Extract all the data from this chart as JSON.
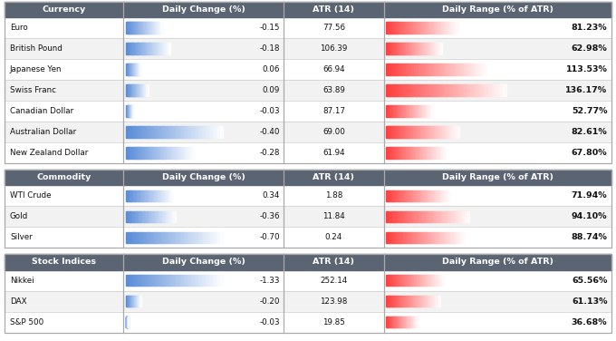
{
  "sections": [
    {
      "header": "Currency",
      "rows": [
        {
          "name": "Euro",
          "daily_change": -0.15,
          "atr": "77.56",
          "daily_range": 81.23
        },
        {
          "name": "British Pound",
          "daily_change": -0.18,
          "atr": "106.39",
          "daily_range": 62.98
        },
        {
          "name": "Japanese Yen",
          "daily_change": 0.06,
          "atr": "66.94",
          "daily_range": 113.53
        },
        {
          "name": "Swiss Franc",
          "daily_change": 0.09,
          "atr": "63.89",
          "daily_range": 136.17
        },
        {
          "name": "Canadian Dollar",
          "daily_change": -0.03,
          "atr": "87.17",
          "daily_range": 52.77
        },
        {
          "name": "Australian Dollar",
          "daily_change": -0.4,
          "atr": "69.00",
          "daily_range": 82.61
        },
        {
          "name": "New Zealand Dollar",
          "daily_change": -0.28,
          "atr": "61.94",
          "daily_range": 67.8
        }
      ]
    },
    {
      "header": "Commodity",
      "rows": [
        {
          "name": "WTI Crude",
          "daily_change": 0.34,
          "atr": "1.88",
          "daily_range": 71.94
        },
        {
          "name": "Gold",
          "daily_change": -0.36,
          "atr": "11.84",
          "daily_range": 94.1
        },
        {
          "name": "Silver",
          "daily_change": -0.7,
          "atr": "0.24",
          "daily_range": 88.74
        }
      ]
    },
    {
      "header": "Stock Indices",
      "rows": [
        {
          "name": "Nikkei",
          "daily_change": -1.33,
          "atr": "252.14",
          "daily_range": 65.56
        },
        {
          "name": "DAX",
          "daily_change": -0.2,
          "atr": "123.98",
          "daily_range": 61.13
        },
        {
          "name": "S&P 500",
          "daily_change": -0.03,
          "atr": "19.85",
          "daily_range": 36.68
        }
      ]
    }
  ],
  "header_bg": "#5a6472",
  "header_fg": "#ffffff",
  "row_bg_white": "#ffffff",
  "row_bg_gray": "#f2f2f2",
  "border_color": "#aaaaaa",
  "line_color": "#cccccc",
  "red_bar_max": 150.0,
  "figsize": [
    6.8,
    3.76
  ],
  "dpi": 100
}
